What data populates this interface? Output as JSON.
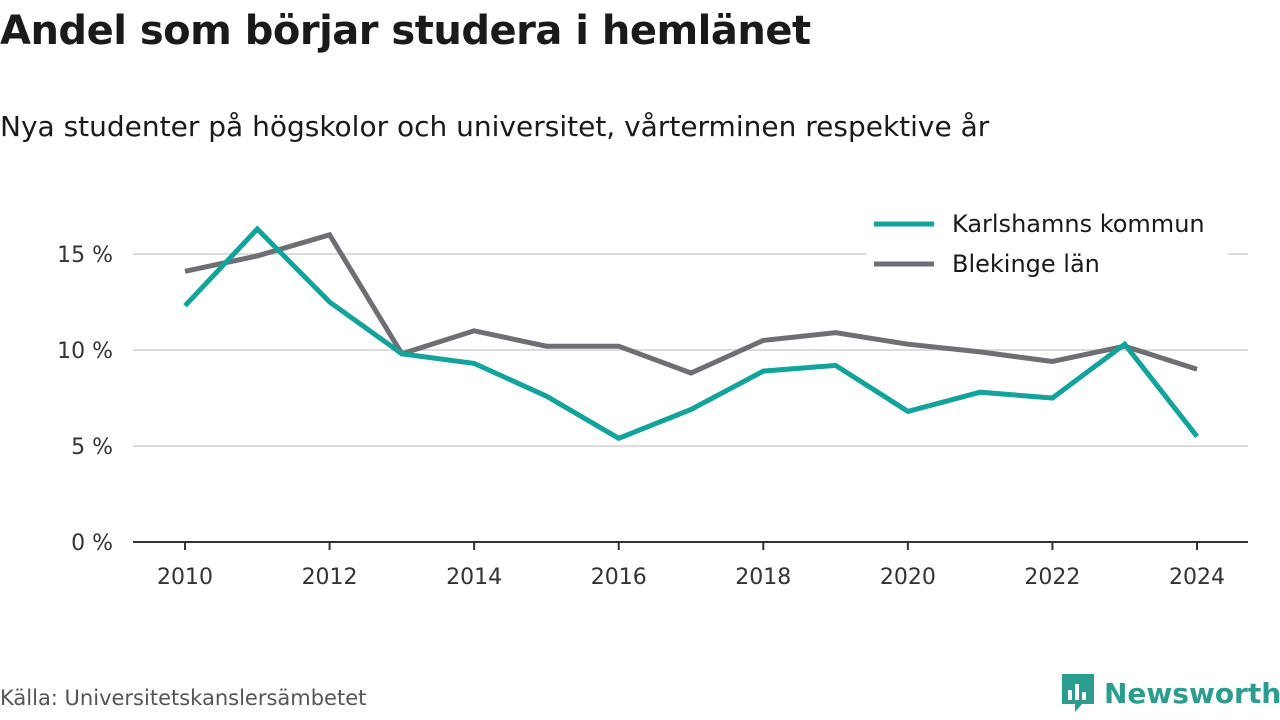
{
  "title": "Andel som börjar studera i hemlänet",
  "subtitle": "Nya studenter på högskolor och universitet, vårterminen respektive år",
  "source": "Källa: Universitetskanslersämbetet",
  "brand": {
    "name": "Newsworthy",
    "color": "#2a9d8f",
    "icon": "newsworthy-logo-icon"
  },
  "chart_data": {
    "type": "line",
    "x": [
      2010,
      2011,
      2012,
      2013,
      2014,
      2015,
      2016,
      2017,
      2018,
      2019,
      2020,
      2021,
      2022,
      2023,
      2024
    ],
    "x_ticks": [
      "2010",
      "2012",
      "2014",
      "2016",
      "2018",
      "2020",
      "2022",
      "2024"
    ],
    "y_ticks": [
      "0 %",
      "5 %",
      "10 %",
      "15 %"
    ],
    "ylim": [
      0,
      18.5
    ],
    "grid": true,
    "legend_position": "top-right",
    "series": [
      {
        "name": "Karlshamns kommun",
        "color": "#12a39a",
        "values": [
          12.3,
          16.3,
          12.5,
          9.8,
          9.3,
          7.6,
          5.4,
          6.9,
          8.9,
          9.2,
          6.8,
          7.8,
          7.5,
          10.3,
          5.5
        ]
      },
      {
        "name": "Blekinge län",
        "color": "#6e6e73",
        "values": [
          14.1,
          14.9,
          16.0,
          9.8,
          11.0,
          10.2,
          10.2,
          8.8,
          10.5,
          10.9,
          10.3,
          9.9,
          9.4,
          10.2,
          9.0
        ]
      }
    ]
  }
}
